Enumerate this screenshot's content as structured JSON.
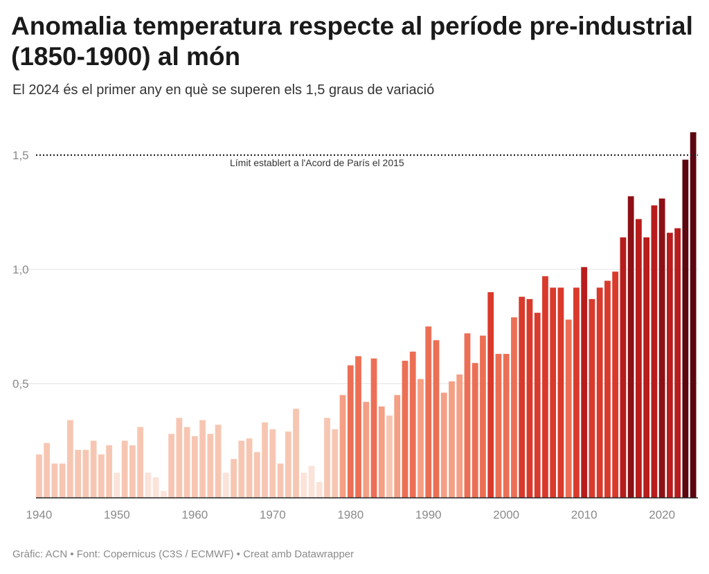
{
  "header": {
    "title": "Anomalia temperatura respecte al període pre-industrial (1850-1900) al món",
    "subtitle": "El 2024 és el primer any en què se superen els 1,5 graus de variació"
  },
  "footer": {
    "text": "Gràfic: ACN • Font: Copernicus (C3S / ECMWF) • Creat amb Datawrapper"
  },
  "chart_data": {
    "type": "bar",
    "title": "Anomalia temperatura respecte al període pre-industrial (1850-1900) al món",
    "subtitle": "El 2024 és el primer any en què se superen els 1,5 graus de variació",
    "xlabel": "",
    "ylabel": "",
    "ylim": [
      0,
      1.6
    ],
    "grid": true,
    "y_ticks": [
      {
        "value": 0.5,
        "label": "0,5"
      },
      {
        "value": 1.0,
        "label": "1,0"
      },
      {
        "value": 1.5,
        "label": "1,5"
      }
    ],
    "x_ticks": [
      1940,
      1950,
      1960,
      1970,
      1980,
      1990,
      2000,
      2010,
      2020
    ],
    "x_tick_labels": [
      "1940",
      "1950",
      "1960",
      "1970",
      "1980",
      "1990",
      "2000",
      "2010",
      "2020"
    ],
    "reference_line": {
      "value": 1.5,
      "label": "Límit establert a l'Acord de París el 2015",
      "style": "dotted"
    },
    "color_scale": [
      "#fbe3d9",
      "#f7c6b2",
      "#f59f84",
      "#ec6f55",
      "#d93a2c",
      "#b81c1c",
      "#8c1015",
      "#5c0610"
    ],
    "x": [
      1940,
      1941,
      1942,
      1943,
      1944,
      1945,
      1946,
      1947,
      1948,
      1949,
      1950,
      1951,
      1952,
      1953,
      1954,
      1955,
      1956,
      1957,
      1958,
      1959,
      1960,
      1961,
      1962,
      1963,
      1964,
      1965,
      1966,
      1967,
      1968,
      1969,
      1970,
      1971,
      1972,
      1973,
      1974,
      1975,
      1976,
      1977,
      1978,
      1979,
      1980,
      1981,
      1982,
      1983,
      1984,
      1985,
      1986,
      1987,
      1988,
      1989,
      1990,
      1991,
      1992,
      1993,
      1994,
      1995,
      1996,
      1997,
      1998,
      1999,
      2000,
      2001,
      2002,
      2003,
      2004,
      2005,
      2006,
      2007,
      2008,
      2009,
      2010,
      2011,
      2012,
      2013,
      2014,
      2015,
      2016,
      2017,
      2018,
      2019,
      2020,
      2021,
      2022,
      2023,
      2024
    ],
    "values": [
      0.19,
      0.24,
      0.15,
      0.15,
      0.34,
      0.21,
      0.21,
      0.25,
      0.19,
      0.23,
      0.11,
      0.25,
      0.23,
      0.31,
      0.11,
      0.09,
      0.03,
      0.28,
      0.35,
      0.31,
      0.27,
      0.34,
      0.28,
      0.32,
      0.11,
      0.17,
      0.25,
      0.26,
      0.2,
      0.33,
      0.3,
      0.15,
      0.29,
      0.39,
      0.11,
      0.14,
      0.07,
      0.35,
      0.3,
      0.45,
      0.58,
      0.62,
      0.42,
      0.61,
      0.4,
      0.36,
      0.45,
      0.6,
      0.64,
      0.52,
      0.75,
      0.69,
      0.46,
      0.51,
      0.54,
      0.72,
      0.59,
      0.71,
      0.9,
      0.63,
      0.63,
      0.79,
      0.88,
      0.87,
      0.81,
      0.97,
      0.92,
      0.92,
      0.78,
      0.92,
      1.01,
      0.87,
      0.92,
      0.95,
      0.99,
      1.14,
      1.32,
      1.22,
      1.14,
      1.28,
      1.31,
      1.16,
      1.18,
      1.48,
      1.6
    ]
  }
}
